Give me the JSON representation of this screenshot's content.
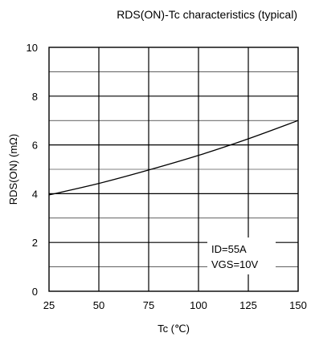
{
  "chart_data": {
    "type": "line",
    "title": "RDS(ON)-Tc characteristics (typical)",
    "xlabel": "Tc (℃)",
    "ylabel": "RDS(ON) (mΩ)",
    "xlim": [
      25,
      150
    ],
    "ylim": [
      0,
      10
    ],
    "x_ticks": [
      25,
      50,
      75,
      100,
      125,
      150
    ],
    "y_ticks": [
      0,
      2,
      4,
      6,
      8,
      10
    ],
    "x_tick_labels": [
      "25",
      "50",
      "75",
      "100",
      "125",
      "150"
    ],
    "y_tick_labels": [
      "0",
      "2",
      "4",
      "6",
      "8",
      "10"
    ],
    "grid": true,
    "minor_y_grid_step": 1,
    "series": [
      {
        "x": [
          25,
          50,
          75,
          100,
          125,
          150
        ],
        "y": [
          3.95,
          4.42,
          4.97,
          5.57,
          6.25,
          7.0
        ]
      }
    ],
    "annotations": [
      "ID=55A",
      "VGS=10V"
    ]
  }
}
